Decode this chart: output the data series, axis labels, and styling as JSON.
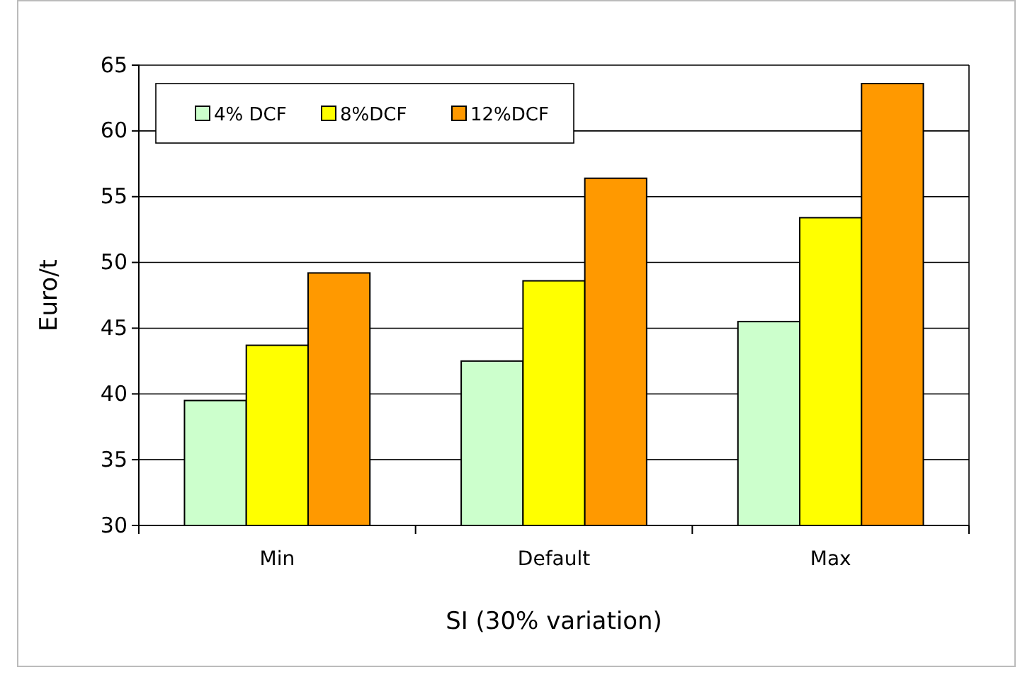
{
  "chart_data": {
    "type": "bar",
    "xlabel": "SI (30% variation)",
    "ylabel": "Euro/t",
    "categories": [
      "Min",
      "Default",
      "Max"
    ],
    "series": [
      {
        "name": "4% DCF",
        "color": "#ccffcc",
        "values": [
          39.5,
          42.5,
          45.5
        ]
      },
      {
        "name": "8%DCF",
        "color": "#ffff00",
        "values": [
          43.7,
          48.6,
          53.4
        ]
      },
      {
        "name": "12%DCF",
        "color": "#ff9900",
        "values": [
          49.2,
          56.4,
          63.6
        ]
      }
    ],
    "ylim": [
      30,
      65
    ],
    "yticks": [
      30,
      35,
      40,
      45,
      50,
      55,
      60,
      65
    ],
    "grid": "y",
    "legend": "top left"
  }
}
